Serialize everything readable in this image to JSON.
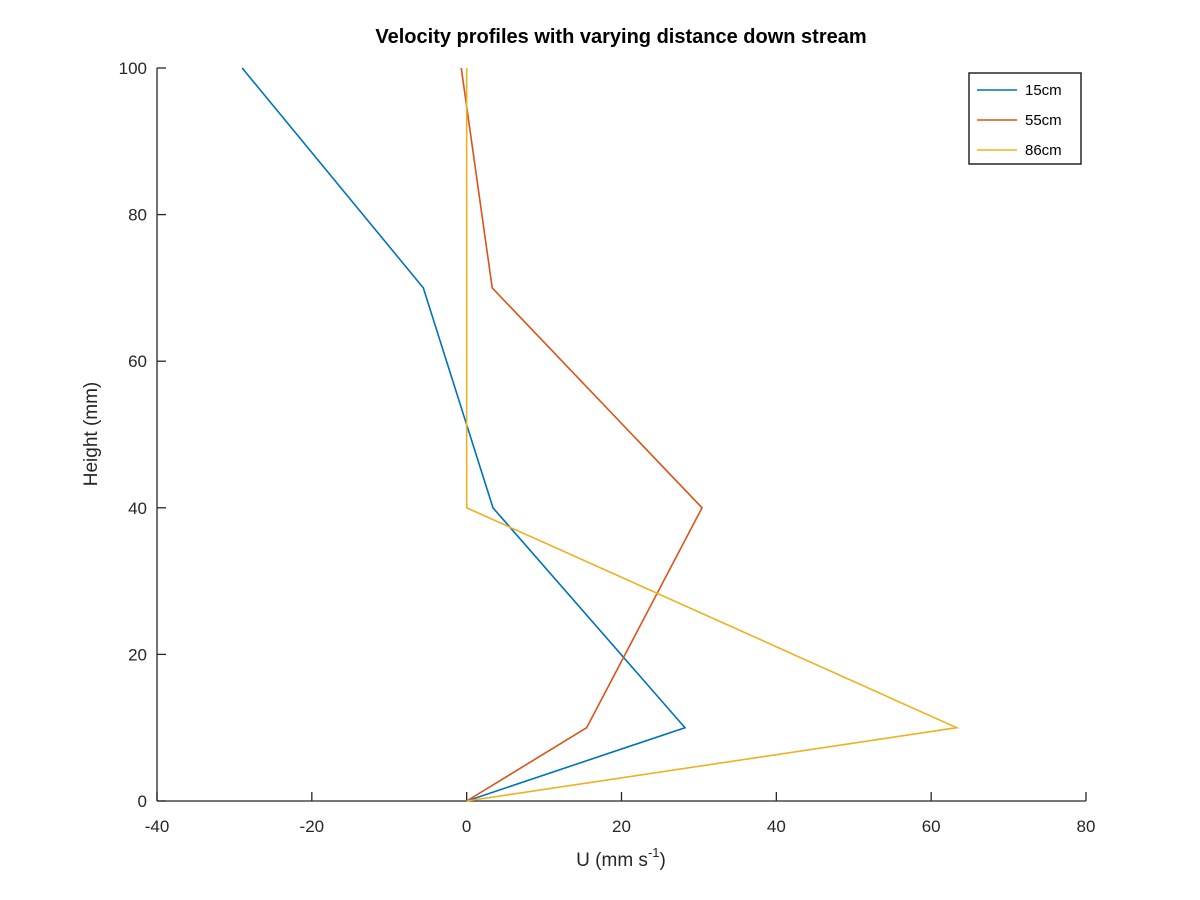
{
  "chart_data": {
    "type": "line",
    "title": "Velocity profiles with varying distance down stream",
    "xlabel": {
      "base": "U (mm s",
      "superscript": "-1",
      "suffix": ")"
    },
    "ylabel": "Height (mm)",
    "xlim": [
      -40,
      80
    ],
    "ylim": [
      0,
      100
    ],
    "xticks": [
      -40,
      -20,
      0,
      20,
      40,
      60,
      80
    ],
    "yticks": [
      0,
      20,
      40,
      60,
      80,
      100
    ],
    "grid": false,
    "legend_position": "top-right",
    "series": [
      {
        "name": "15cm",
        "color": "#0072BD",
        "x": [
          0,
          28.2,
          3.4,
          -5.6,
          -29
        ],
        "y": [
          0,
          10,
          40,
          70,
          100
        ]
      },
      {
        "name": "55cm",
        "color": "#D95319",
        "x": [
          0,
          15.5,
          30.4,
          3.3,
          -0.7
        ],
        "y": [
          0,
          10,
          40,
          70,
          100
        ]
      },
      {
        "name": "86cm",
        "color": "#EDB120",
        "x": [
          0,
          63.3,
          0,
          0,
          0
        ],
        "y": [
          0,
          10,
          40,
          70,
          100
        ]
      }
    ]
  }
}
